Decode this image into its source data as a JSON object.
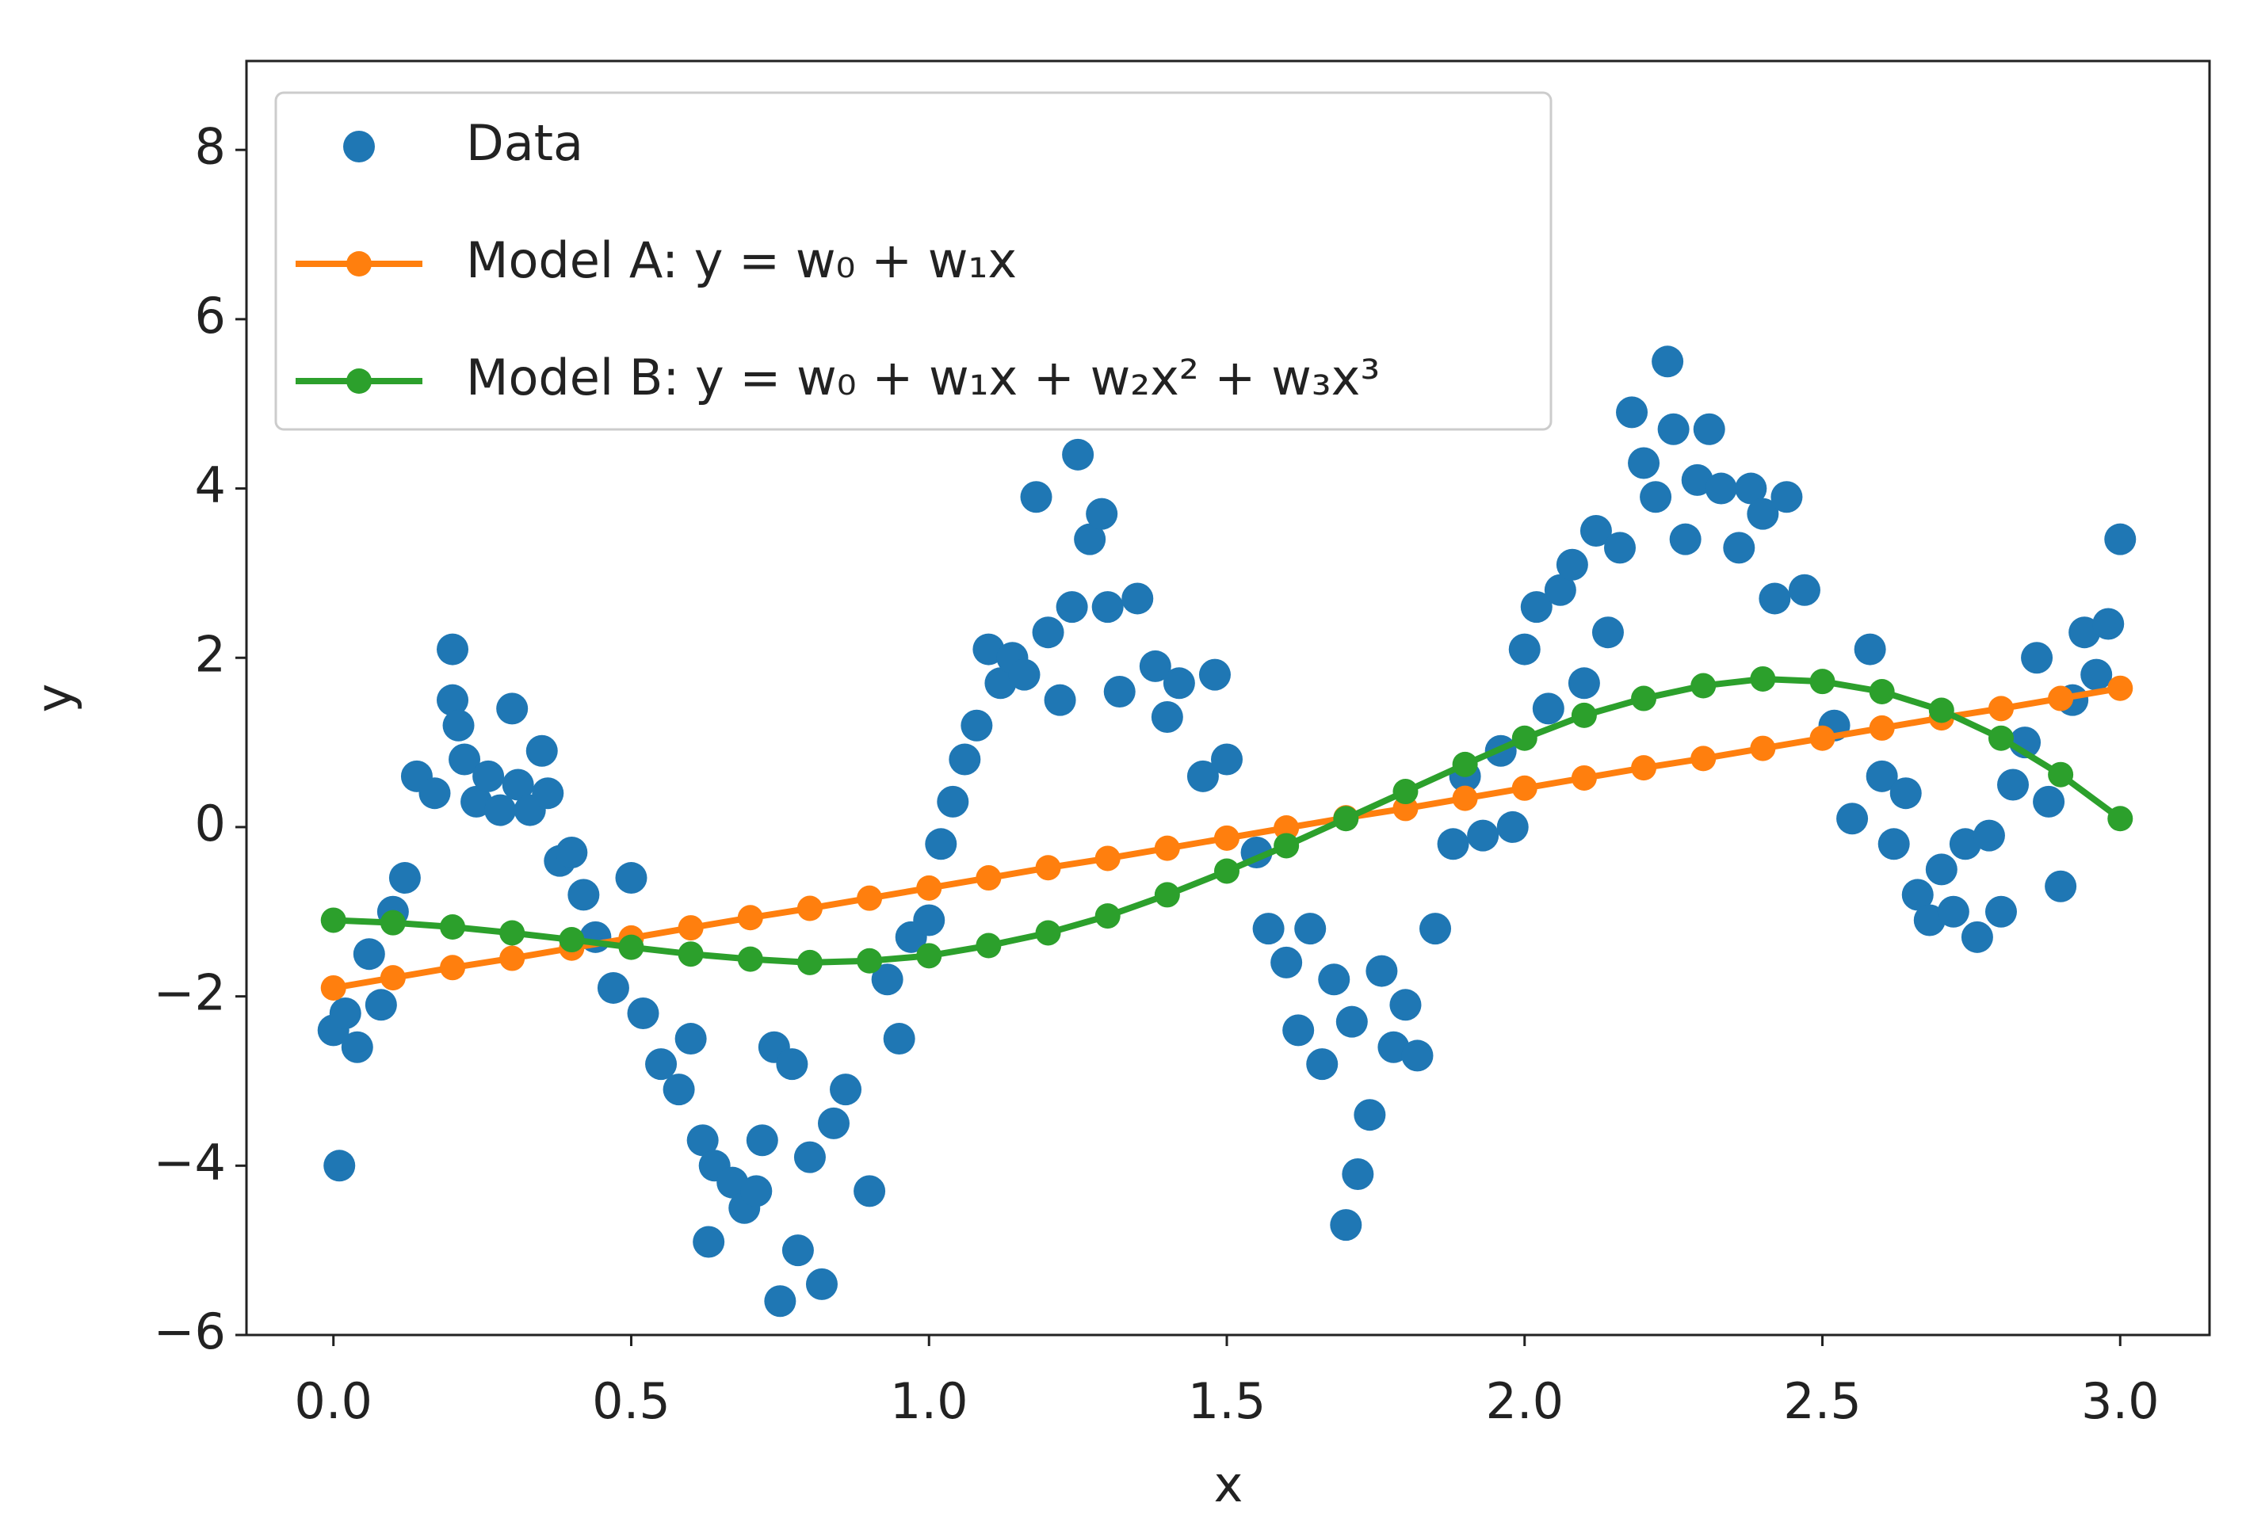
{
  "chart_data": {
    "type": "scatter",
    "xlabel": "x",
    "ylabel": "y",
    "xlim": [
      -0.146,
      3.15
    ],
    "ylim": [
      -6,
      9.05
    ],
    "xticks": [
      {
        "value": 0,
        "label": "0.0"
      },
      {
        "value": 0.5,
        "label": "0.5"
      },
      {
        "value": 1,
        "label": "1.0"
      },
      {
        "value": 1.5,
        "label": "1.5"
      },
      {
        "value": 2,
        "label": "2.0"
      },
      {
        "value": 2.5,
        "label": "2.5"
      },
      {
        "value": 3,
        "label": "3.0"
      }
    ],
    "yticks": [
      {
        "value": -6,
        "label": "−6"
      },
      {
        "value": -4,
        "label": "−4"
      },
      {
        "value": -2,
        "label": "−2"
      },
      0,
      2,
      4,
      6,
      8
    ],
    "grid": false,
    "legend": "upper left",
    "series": [
      {
        "name": "Data",
        "type": "scatter",
        "color": "#1f77b4",
        "x": [
          0.0,
          0.01,
          0.02,
          0.04,
          0.06,
          0.08,
          0.1,
          0.12,
          0.14,
          0.17,
          0.2,
          0.2,
          0.21,
          0.22,
          0.24,
          0.26,
          0.28,
          0.3,
          0.31,
          0.33,
          0.35,
          0.36,
          0.38,
          0.4,
          0.42,
          0.44,
          0.47,
          0.5,
          0.52,
          0.55,
          0.58,
          0.6,
          0.62,
          0.64,
          0.63,
          0.67,
          0.69,
          0.71,
          0.72,
          0.74,
          0.75,
          0.77,
          0.78,
          0.8,
          0.82,
          0.84,
          0.86,
          0.9,
          0.93,
          0.95,
          0.97,
          1.0,
          1.02,
          1.04,
          1.06,
          1.08,
          1.1,
          1.12,
          1.14,
          1.16,
          1.18,
          1.2,
          1.22,
          1.24,
          1.25,
          1.27,
          1.29,
          1.3,
          1.32,
          1.35,
          1.38,
          1.4,
          1.42,
          1.46,
          1.48,
          1.5,
          1.55,
          1.57,
          1.6,
          1.62,
          1.64,
          1.66,
          1.68,
          1.7,
          1.71,
          1.72,
          1.74,
          1.76,
          1.78,
          1.8,
          1.82,
          1.85,
          1.88,
          1.9,
          1.93,
          1.96,
          1.98,
          2.0,
          2.02,
          2.04,
          2.06,
          2.08,
          2.1,
          2.12,
          2.14,
          2.16,
          2.18,
          2.2,
          2.22,
          2.24,
          2.25,
          2.27,
          2.29,
          2.31,
          2.33,
          2.36,
          2.38,
          2.4,
          2.42,
          2.44,
          2.47,
          2.52,
          2.55,
          2.58,
          2.6,
          2.62,
          2.64,
          2.66,
          2.68,
          2.7,
          2.72,
          2.74,
          2.76,
          2.78,
          2.8,
          2.82,
          2.84,
          2.86,
          2.88,
          2.9,
          2.92,
          2.94,
          2.96,
          2.98,
          3.0
        ],
        "values": [
          -2.4,
          -4.0,
          -2.2,
          -2.6,
          -1.5,
          -2.1,
          -1.0,
          -0.6,
          0.6,
          0.4,
          2.1,
          1.5,
          1.2,
          0.8,
          0.3,
          0.6,
          0.2,
          1.4,
          0.5,
          0.2,
          0.9,
          0.4,
          -0.4,
          -0.3,
          -0.8,
          -1.3,
          -1.9,
          -0.6,
          -2.2,
          -2.8,
          -3.1,
          -2.5,
          -3.7,
          -4.0,
          -4.9,
          -4.2,
          -4.5,
          -4.3,
          -3.7,
          -2.6,
          -5.6,
          -2.8,
          -5.0,
          -3.9,
          -5.4,
          -3.5,
          -3.1,
          -4.3,
          -1.8,
          -2.5,
          -1.3,
          -1.1,
          -0.2,
          0.3,
          0.8,
          1.2,
          2.1,
          1.7,
          2.0,
          1.8,
          3.9,
          2.3,
          1.5,
          2.6,
          4.4,
          3.4,
          3.7,
          2.6,
          1.6,
          2.7,
          1.9,
          1.3,
          1.7,
          0.6,
          1.8,
          0.8,
          -0.3,
          -1.2,
          -1.6,
          -2.4,
          -1.2,
          -2.8,
          -1.8,
          -4.7,
          -2.3,
          -4.1,
          -3.4,
          -1.7,
          -2.6,
          -2.1,
          -2.7,
          -1.2,
          -0.2,
          0.6,
          -0.1,
          0.9,
          0.0,
          2.1,
          2.6,
          1.4,
          2.8,
          3.1,
          1.7,
          3.5,
          2.3,
          3.3,
          4.9,
          4.3,
          3.9,
          5.5,
          4.7,
          3.4,
          4.1,
          4.7,
          4.0,
          3.3,
          4.0,
          3.7,
          2.7,
          3.9,
          2.8,
          1.2,
          0.1,
          2.1,
          0.6,
          -0.2,
          0.4,
          -0.8,
          -1.1,
          -0.5,
          -1.0,
          -0.2,
          -1.3,
          -0.1,
          -1.0,
          0.5,
          1.0,
          2.0,
          0.3,
          -0.7,
          1.5,
          2.3,
          1.8,
          2.4,
          3.4
        ]
      },
      {
        "name": "Model A: y = w₀ + w₁x",
        "type": "line",
        "color": "#ff7f0e",
        "x": [
          0,
          0.1,
          0.2,
          0.3,
          0.4,
          0.5,
          0.6,
          0.7,
          0.8,
          0.9,
          1,
          1.1,
          1.2,
          1.3,
          1.4,
          1.5,
          1.6,
          1.7,
          1.8,
          1.9,
          2,
          2.1,
          2.2,
          2.3,
          2.4,
          2.5,
          2.6,
          2.7,
          2.8,
          2.9,
          3
        ],
        "values": [
          -1.9,
          -1.78,
          -1.66,
          -1.55,
          -1.43,
          -1.31,
          -1.19,
          -1.07,
          -0.96,
          -0.84,
          -0.72,
          -0.6,
          -0.48,
          -0.37,
          -0.25,
          -0.13,
          -0.01,
          0.11,
          0.22,
          0.34,
          0.46,
          0.58,
          0.7,
          0.81,
          0.93,
          1.05,
          1.17,
          1.29,
          1.4,
          1.52,
          1.64
        ]
      },
      {
        "name": "Model B: y = w₀ + w₁x + w₂x² + w₃x³",
        "type": "line",
        "color": "#2ca02c",
        "x": [
          0,
          0.1,
          0.2,
          0.3,
          0.4,
          0.5,
          0.6,
          0.7,
          0.8,
          0.9,
          1,
          1.1,
          1.2,
          1.3,
          1.4,
          1.5,
          1.6,
          1.7,
          1.8,
          1.9,
          2,
          2.1,
          2.2,
          2.3,
          2.4,
          2.5,
          2.6,
          2.7,
          2.8,
          2.9,
          3
        ],
        "values": [
          -1.1,
          -1.13,
          -1.18,
          -1.25,
          -1.33,
          -1.42,
          -1.5,
          -1.56,
          -1.6,
          -1.58,
          -1.52,
          -1.4,
          -1.25,
          -1.05,
          -0.8,
          -0.52,
          -0.22,
          0.1,
          0.42,
          0.74,
          1.05,
          1.32,
          1.52,
          1.67,
          1.75,
          1.72,
          1.6,
          1.38,
          1.05,
          0.62,
          0.1
        ]
      }
    ]
  }
}
